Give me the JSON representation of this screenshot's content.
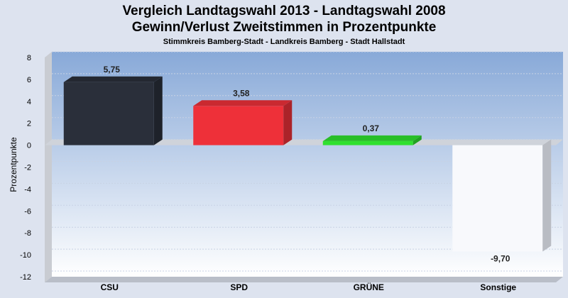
{
  "title": "Vergleich Landtagswahl 2013 - Landtagswahl 2008",
  "subtitle": "Gewinn/Verlust Zweitstimmen in Prozentpunkte",
  "subsubtitle": "Stimmkreis Bamberg-Stadt - Landkreis Bamberg - Stadt Hallstadt",
  "colors": {
    "background": "#dde3ef",
    "plot_top": "#8fb0dc",
    "plot_bottom": "#ffffff"
  },
  "chart_data": {
    "type": "bar",
    "title": "Vergleich Landtagswahl 2013 - Landtagswahl 2008",
    "subtitle": "Gewinn/Verlust Zweitstimmen in Prozentpunkte",
    "xlabel": "",
    "ylabel": "Prozentpunkte",
    "ylim": [
      -12,
      8
    ],
    "yticks": [
      8,
      6,
      4,
      2,
      0,
      -2,
      -4,
      -6,
      -8,
      -10,
      -12
    ],
    "categories": [
      "CSU",
      "SPD",
      "GRÜNE",
      "Sonstige"
    ],
    "values": [
      5.75,
      3.58,
      0.37,
      -9.7
    ],
    "value_labels": [
      "5,75",
      "3,58",
      "0,37",
      "-9,70"
    ],
    "bar_colors": [
      "#2a2f3a",
      "#ee3039",
      "#2fe02f",
      "#f8f9fc"
    ],
    "grid": true,
    "style": "3d"
  }
}
